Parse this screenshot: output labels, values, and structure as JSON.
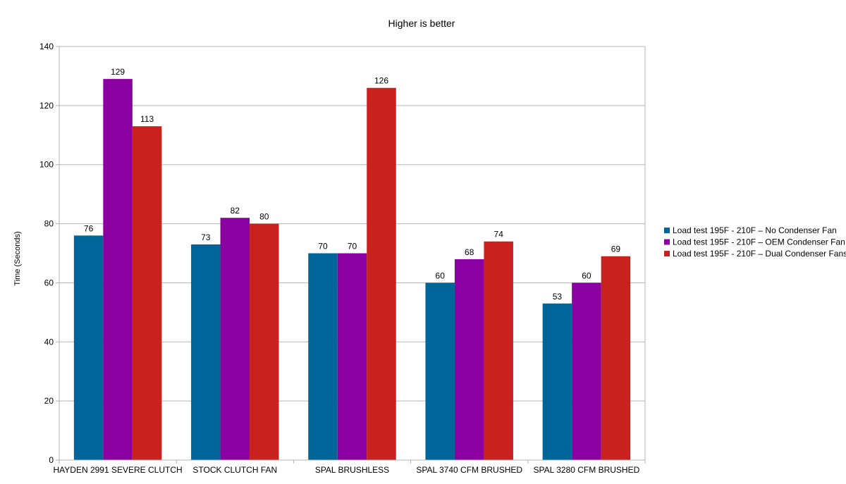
{
  "chart_data": {
    "type": "bar",
    "title": "Higher is better",
    "xlabel": "",
    "ylabel": "Time (Seconds)",
    "ylim": [
      0,
      140
    ],
    "yticks": [
      0,
      20,
      40,
      60,
      80,
      100,
      120,
      140
    ],
    "grid": true,
    "legend_position": "right",
    "categories": [
      "HAYDEN 2991 SEVERE CLUTCH",
      "STOCK CLUTCH FAN",
      "SPAL BRUSHLESS",
      "SPAL 3740 CFM BRUSHED",
      "SPAL 3280 CFM BRUSHED"
    ],
    "series": [
      {
        "name": "Load test 195F - 210F – No Condenser Fan",
        "color": "#006699",
        "values": [
          76,
          73,
          70,
          60,
          53
        ]
      },
      {
        "name": "Load test 195F - 210F – OEM Condenser Fan",
        "color": "#8b00a0",
        "values": [
          129,
          82,
          70,
          68,
          60
        ]
      },
      {
        "name": "Load test 195F - 210F – Dual Condenser Fans",
        "color": "#c9211e",
        "values": [
          113,
          80,
          126,
          74,
          69
        ]
      }
    ]
  }
}
